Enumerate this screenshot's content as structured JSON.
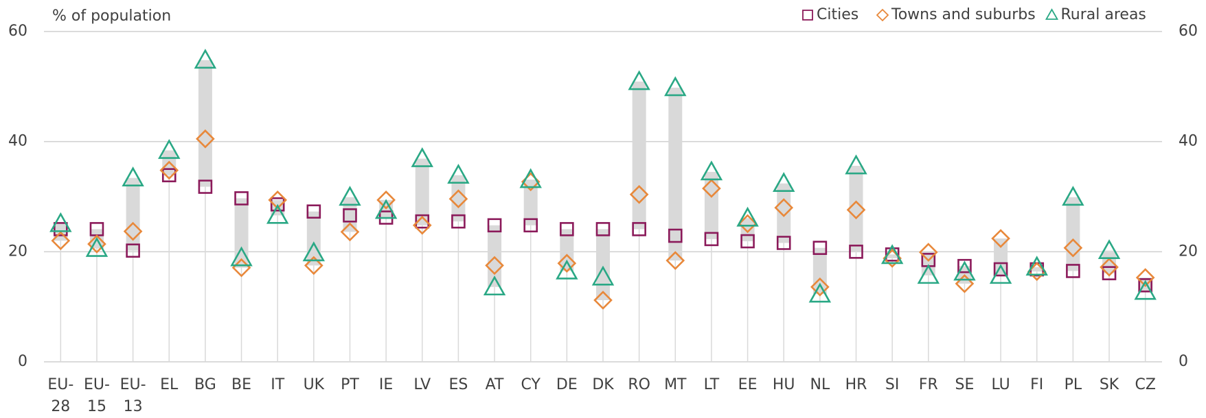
{
  "chart_data": {
    "type": "range-dot",
    "y_axis_label": "% of population",
    "categories": [
      "EU-28",
      "EU-15",
      "EU-13",
      "EL",
      "BG",
      "BE",
      "IT",
      "UK",
      "PT",
      "IE",
      "LV",
      "ES",
      "AT",
      "CY",
      "DE",
      "DK",
      "RO",
      "MT",
      "LT",
      "EE",
      "HU",
      "NL",
      "HR",
      "SI",
      "FR",
      "SE",
      "LU",
      "FI",
      "PL",
      "SK",
      "CZ"
    ],
    "series": [
      {
        "name": "Cities",
        "color": "#8b1a5a",
        "marker": "square",
        "values": [
          24.1,
          24.1,
          20.2,
          33.9,
          31.8,
          29.7,
          28.6,
          27.3,
          26.6,
          26.2,
          25.5,
          25.5,
          24.8,
          24.8,
          24.1,
          24.1,
          24.1,
          22.9,
          22.3,
          21.9,
          21.6,
          20.7,
          20.0,
          19.5,
          18.5,
          17.4,
          16.8,
          16.8,
          16.5,
          16.1,
          13.9
        ]
      },
      {
        "name": "Towns and suburbs",
        "color": "#e8883a",
        "marker": "diamond",
        "values": [
          22.0,
          21.4,
          23.7,
          34.8,
          40.5,
          17.1,
          29.4,
          17.5,
          23.6,
          29.4,
          24.8,
          29.6,
          17.5,
          32.7,
          17.9,
          11.2,
          30.4,
          18.4,
          31.5,
          25.1,
          28.0,
          13.6,
          27.6,
          18.8,
          19.9,
          14.2,
          22.4,
          16.4,
          20.7,
          17.2,
          15.3
        ]
      },
      {
        "name": "Rural areas",
        "color": "#2aa885",
        "marker": "triangle",
        "values": [
          25.1,
          20.6,
          33.4,
          38.4,
          54.8,
          18.9,
          26.6,
          19.8,
          29.9,
          27.5,
          36.9,
          33.9,
          13.6,
          33.1,
          16.5,
          15.4,
          50.9,
          49.8,
          34.5,
          26.1,
          32.4,
          12.3,
          35.6,
          19.3,
          15.7,
          16.3,
          15.7,
          17.2,
          29.9,
          20.2,
          12.8
        ]
      }
    ],
    "ylim": [
      0,
      60
    ],
    "yticks": [
      0,
      20,
      40,
      60
    ],
    "y2lim": [
      0,
      60
    ],
    "y2ticks": [
      0,
      20,
      40,
      60
    ],
    "grid": true,
    "legend": "top-right"
  }
}
